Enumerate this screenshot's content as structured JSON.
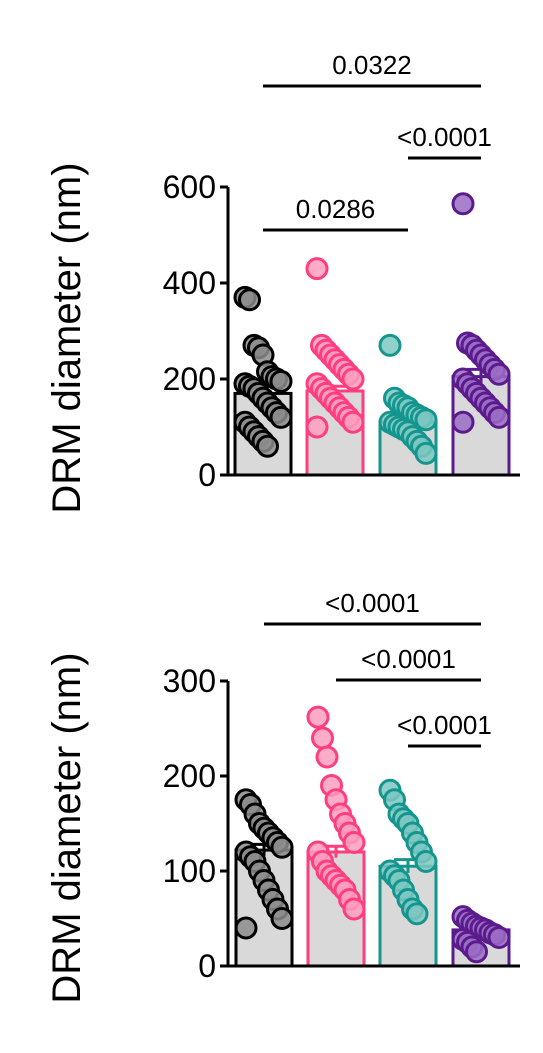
{
  "colors": {
    "bar_fill": "#d9d9d9",
    "axis": "#000000",
    "group_colors": [
      "#000000",
      "#ff3d7f",
      "#14968f",
      "#5b1b8c"
    ],
    "point_fills": [
      "#8c8c8c",
      "#ff9ec0",
      "#7cc7c1",
      "#9a6cc4"
    ]
  },
  "chart_data": [
    {
      "type": "bar",
      "ylabel": "DRM diameter (nm)",
      "ylim": [
        0,
        600
      ],
      "yticks": [
        "0",
        "200",
        "400",
        "600"
      ],
      "categories": [
        "",
        "",
        "",
        ""
      ],
      "values": [
        170,
        175,
        110,
        205
      ],
      "errors": [
        15,
        10,
        10,
        15
      ],
      "points": [
        [
          370,
          365,
          270,
          265,
          250,
          215,
          205,
          200,
          195,
          190,
          185,
          180,
          170,
          160,
          150,
          140,
          130,
          120,
          110,
          100,
          90,
          80,
          70,
          60
        ],
        [
          430,
          270,
          260,
          250,
          240,
          230,
          220,
          210,
          200,
          190,
          180,
          170,
          160,
          150,
          140,
          130,
          120,
          110,
          100
        ],
        [
          270,
          160,
          150,
          145,
          140,
          130,
          125,
          120,
          115,
          110,
          105,
          100,
          95,
          90,
          80,
          70,
          60,
          45
        ],
        [
          565,
          275,
          270,
          260,
          250,
          240,
          230,
          220,
          210,
          200,
          190,
          180,
          170,
          160,
          150,
          140,
          130,
          120,
          110
        ]
      ],
      "comparisons": [
        {
          "from": 0,
          "to": 2,
          "label": "0.0286"
        },
        {
          "from": 2,
          "to": 3,
          "label": "<0.0001"
        },
        {
          "from": 0,
          "to": 3,
          "label": "0.0322"
        }
      ]
    },
    {
      "type": "bar",
      "ylabel": "DRM diameter (nm)",
      "ylim": [
        0,
        300
      ],
      "yticks": [
        "0",
        "100",
        "200",
        "300"
      ],
      "categories": [
        "",
        "",
        "",
        ""
      ],
      "values": [
        122,
        120,
        105,
        38
      ],
      "errors": [
        6,
        6,
        7,
        2
      ],
      "points": [
        [
          175,
          170,
          160,
          150,
          145,
          140,
          135,
          130,
          125,
          120,
          115,
          110,
          100,
          90,
          80,
          70,
          60,
          50,
          40
        ],
        [
          262,
          240,
          220,
          190,
          175,
          160,
          150,
          140,
          130,
          120,
          110,
          100,
          95,
          90,
          85,
          80,
          70,
          60
        ],
        [
          185,
          175,
          160,
          155,
          150,
          140,
          130,
          120,
          110,
          100,
          95,
          90,
          80,
          70,
          60,
          55
        ],
        [
          52,
          48,
          45,
          42,
          40,
          38,
          35,
          33,
          30,
          28,
          25,
          20,
          15
        ]
      ],
      "comparisons": [
        {
          "from": 2,
          "to": 3,
          "label": "<0.0001"
        },
        {
          "from": 1,
          "to": 3,
          "label": "<0.0001"
        },
        {
          "from": 0,
          "to": 3,
          "label": "<0.0001"
        }
      ]
    }
  ]
}
